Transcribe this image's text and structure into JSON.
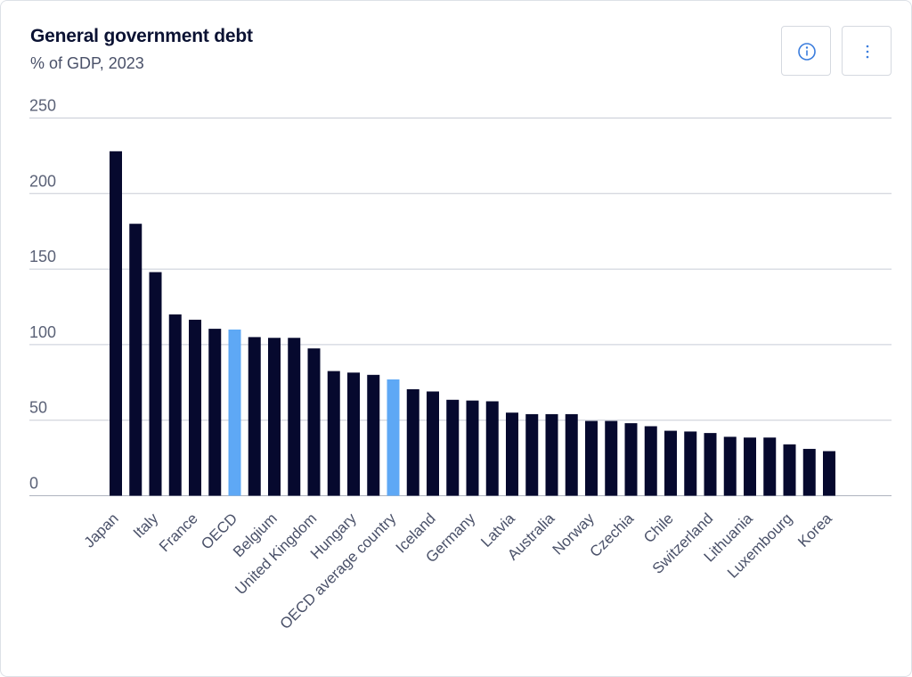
{
  "header": {
    "title": "General government debt",
    "subtitle": "% of GDP, 2023"
  },
  "toolbar": {
    "info_icon": "info-icon",
    "more_icon": "more-vertical-icon"
  },
  "colors": {
    "bar": "#06092e",
    "highlight": "#5ea8f5",
    "grid": "#c8ccd6",
    "text": "#4a5169"
  },
  "chart_data": {
    "type": "bar",
    "title": "General government debt",
    "subtitle": "% of GDP, 2023",
    "ylim": [
      0,
      250
    ],
    "yticks": [
      0,
      50,
      100,
      150,
      200,
      250
    ],
    "grid": true,
    "categories": [
      "Japan",
      "",
      "Italy",
      "",
      "France",
      "",
      "OECD",
      "",
      "Belgium",
      "",
      "United Kingdom",
      "",
      "Hungary",
      "",
      "OECD average country",
      "",
      "Iceland",
      "",
      "Germany",
      "",
      "Latvia",
      "",
      "Australia",
      "",
      "Norway",
      "",
      "Czechia",
      "",
      "Chile",
      "",
      "Switzerland",
      "",
      "Lithuania",
      "",
      "Luxembourg",
      "",
      "Korea"
    ],
    "values": [
      228,
      180,
      148,
      120,
      116.5,
      110.5,
      110,
      105,
      104.5,
      104.5,
      97.5,
      82.5,
      81.5,
      80,
      77,
      70.5,
      69,
      63.5,
      63,
      62.5,
      55,
      54,
      54,
      54,
      49.5,
      49.5,
      48,
      46,
      43,
      42.5,
      41.5,
      39,
      38.5,
      38.5,
      34,
      31,
      29.5
    ],
    "highlight": [
      "OECD",
      "OECD average country"
    ]
  }
}
